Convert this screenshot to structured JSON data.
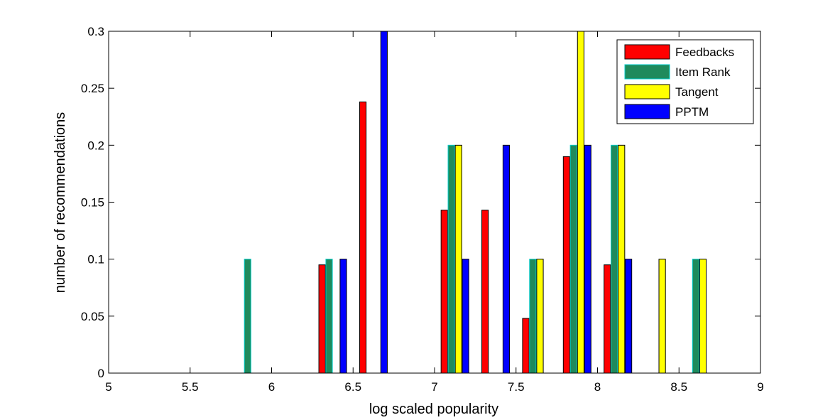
{
  "chart_data": {
    "type": "bar",
    "xlabel": "log scaled popularity",
    "ylabel": "number of recommendations",
    "xlim": [
      5,
      9
    ],
    "ylim": [
      0,
      0.3
    ],
    "xticks": [
      "5",
      "5.5",
      "6",
      "6.5",
      "7",
      "7.5",
      "8",
      "8.5",
      "9"
    ],
    "yticks": [
      "0",
      "0.05",
      "0.1",
      "0.15",
      "0.2",
      "0.25",
      "0.3"
    ],
    "grid": false,
    "legend_position": "top-right",
    "bar_width": 0.04,
    "centers": [
      5.125,
      5.375,
      5.625,
      5.875,
      6.125,
      6.375,
      6.625,
      6.875,
      7.125,
      7.375,
      7.625,
      7.875,
      8.125,
      8.375,
      8.625,
      8.875
    ],
    "series": [
      {
        "name": "Feedbacks",
        "color": "#ff0000",
        "offset": -0.065,
        "values": [
          0,
          0,
          0,
          0,
          0,
          0.095,
          0.238,
          0,
          0.143,
          0.143,
          0.048,
          0.19,
          0.095,
          0,
          0,
          0
        ]
      },
      {
        "name": "Item Rank",
        "color": "#1f8a5c",
        "edge": "#00cccc",
        "offset": -0.022,
        "values": [
          0,
          0,
          0,
          0.1,
          0,
          0.1,
          0,
          0,
          0.2,
          0,
          0.1,
          0.2,
          0.2,
          0,
          0.1,
          0
        ]
      },
      {
        "name": "Tangent",
        "color": "#ffff00",
        "offset": 0.022,
        "values": [
          0,
          0,
          0,
          0,
          0,
          0,
          0,
          0,
          0.2,
          0,
          0.1,
          0.3,
          0.2,
          0.1,
          0.1,
          0
        ]
      },
      {
        "name": "PPTM",
        "color": "#0000ff",
        "offset": 0.065,
        "values": [
          0,
          0,
          0,
          0,
          0,
          0.1,
          0.3,
          0,
          0.1,
          0.2,
          0,
          0.2,
          0.1,
          0,
          0,
          0
        ]
      }
    ]
  }
}
